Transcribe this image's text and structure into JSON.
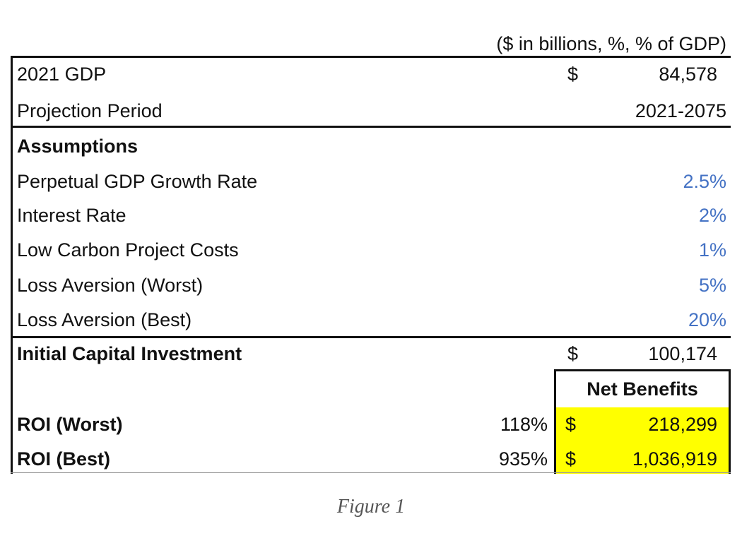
{
  "header": {
    "units": "($ in billions, %, % of GDP)"
  },
  "table": {
    "rows": [
      [
        "2021 GDP",
        "$",
        "84,578"
      ],
      [
        "Projection Period",
        "2021-2075"
      ],
      [
        "Assumptions"
      ],
      [
        "Perpetual GDP Growth Rate",
        "2.5%"
      ],
      [
        "Interest Rate",
        "2%"
      ],
      [
        "Low Carbon Project Costs",
        "1%"
      ],
      [
        "Loss Aversion (Worst)",
        "5%"
      ],
      [
        "Loss Aversion (Best)",
        "20%"
      ],
      [
        "Initial Capital Investment",
        "$",
        "100,174"
      ],
      [
        "Net Benefits"
      ],
      [
        "ROI (Worst)",
        "118%",
        "$",
        "218,299"
      ],
      [
        "ROI (Best)",
        "935%",
        "$",
        "1,036,919"
      ]
    ]
  },
  "caption": "Figure 1"
}
